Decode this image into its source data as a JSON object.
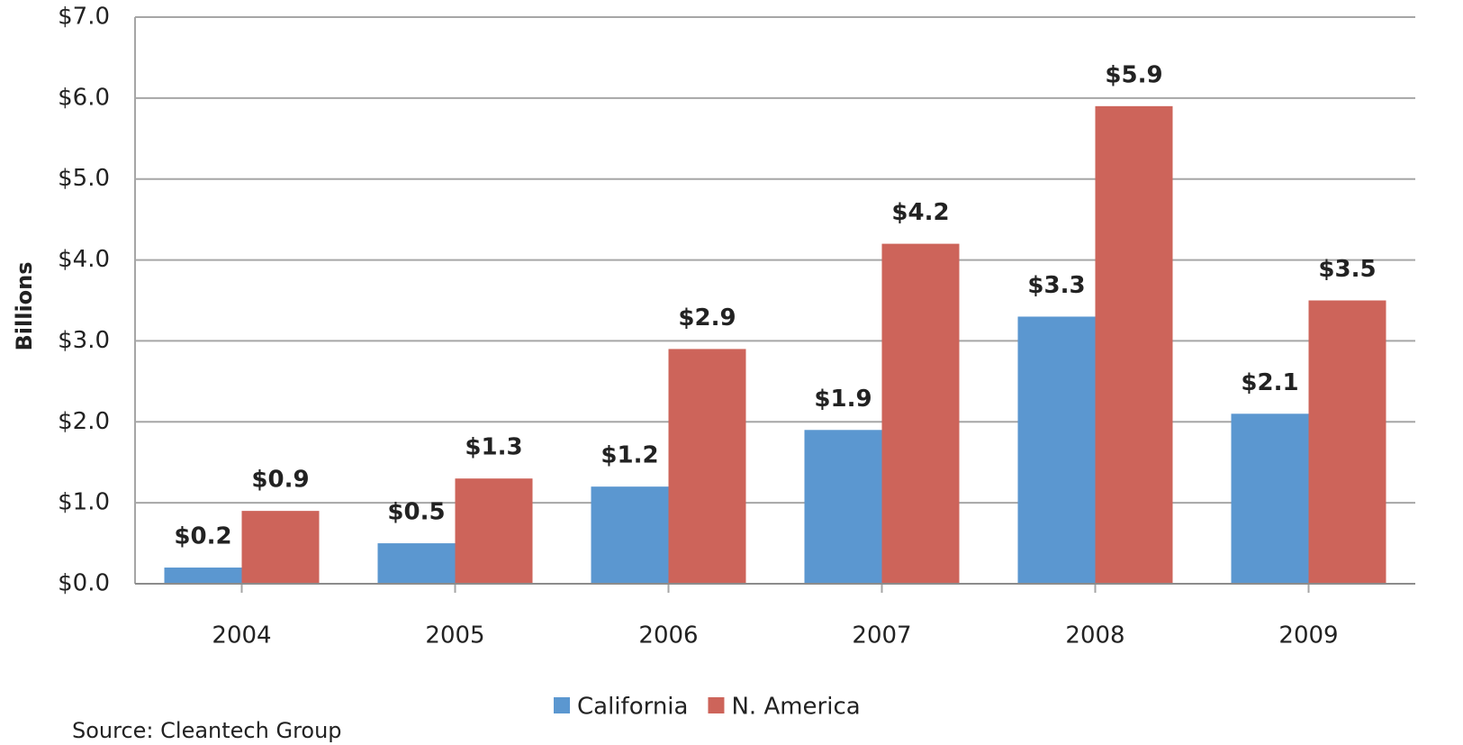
{
  "chart_data": {
    "type": "bar",
    "y_label": "Billions",
    "source": "Source: Cleantech Group",
    "categories": [
      "2004",
      "2005",
      "2006",
      "2007",
      "2008",
      "2009"
    ],
    "series": [
      {
        "name": "California",
        "color": "#5b97d0",
        "values": [
          0.2,
          0.5,
          1.2,
          1.9,
          3.3,
          2.1
        ],
        "value_labels": [
          "$0.2",
          "$0.5",
          "$1.2",
          "$1.9",
          "$3.3",
          "$2.1"
        ]
      },
      {
        "name": "N. America",
        "color": "#cd645a",
        "values": [
          0.9,
          1.3,
          2.9,
          4.2,
          5.9,
          3.5
        ],
        "value_labels": [
          "$0.9",
          "$1.3",
          "$2.9",
          "$4.2",
          "$5.9",
          "$3.5"
        ]
      }
    ],
    "ylim": [
      0,
      7
    ],
    "yticks": [
      {
        "value": 0,
        "label": "$0.0"
      },
      {
        "value": 1,
        "label": "$1.0"
      },
      {
        "value": 2,
        "label": "$2.0"
      },
      {
        "value": 3,
        "label": "$3.0"
      },
      {
        "value": 4,
        "label": "$4.0"
      },
      {
        "value": 5,
        "label": "$5.0"
      },
      {
        "value": 6,
        "label": "$6.0"
      },
      {
        "value": 7,
        "label": "$7.0"
      }
    ],
    "grid": true,
    "legend": "bottom"
  }
}
